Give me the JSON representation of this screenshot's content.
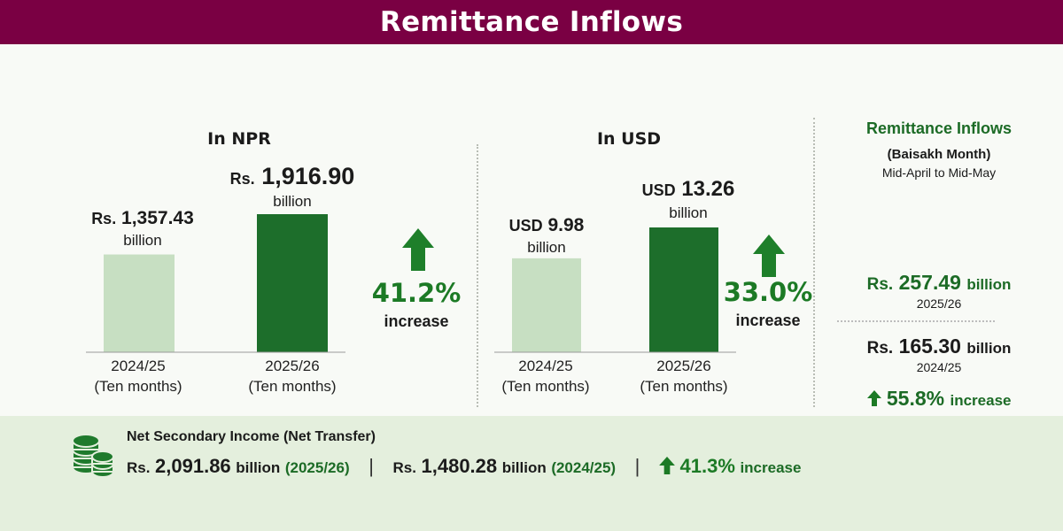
{
  "header": {
    "title": "Remittance Inflows"
  },
  "colors": {
    "header_bg": "#7a0043",
    "bar_prev": "#c7dfc2",
    "bar_curr": "#1d6e2b",
    "accent_green": "#1c7a25"
  },
  "chart_data": [
    {
      "type": "bar",
      "title": "In NPR",
      "categories": [
        "2024/25\n(Ten months)",
        "2025/26\n(Ten months)"
      ],
      "category_lines": [
        [
          "2024/25",
          "(Ten months)"
        ],
        [
          "2025/26",
          "(Ten months)"
        ]
      ],
      "values": [
        1357.43,
        1916.9
      ],
      "data_labels": [
        {
          "prefix": "Rs.",
          "amount": "1,357.43",
          "unit": "billion"
        },
        {
          "prefix": "Rs.",
          "amount": "1,916.90",
          "unit": "billion"
        }
      ],
      "change": {
        "value": "41.2%",
        "label": "increase",
        "icon": "arrow-up-icon"
      },
      "grid": false
    },
    {
      "type": "bar",
      "title": "In USD",
      "categories": [
        "2024/25\n(Ten months)",
        "2025/26\n(Ten months)"
      ],
      "category_lines": [
        [
          "2024/25",
          "(Ten months)"
        ],
        [
          "2025/26",
          "(Ten months)"
        ]
      ],
      "values": [
        9.98,
        13.26
      ],
      "data_labels": [
        {
          "prefix": "USD",
          "amount": "9.98",
          "unit": "billion"
        },
        {
          "prefix": "USD",
          "amount": "13.26",
          "unit": "billion"
        }
      ],
      "change": {
        "value": "33.0%",
        "label": "increase",
        "icon": "arrow-up-icon"
      },
      "grid": false
    }
  ],
  "side_panel": {
    "title": "Remittance Inflows",
    "subtitle": "(Baisakh Month)",
    "range": "Mid-April to Mid-May",
    "current": {
      "prefix": "Rs.",
      "amount": "257.49",
      "unit": "billion",
      "year": "2025/26"
    },
    "previous": {
      "prefix": "Rs.",
      "amount": "165.30",
      "unit": "billion",
      "year": "2024/25"
    },
    "change": {
      "value": "55.8%",
      "label": "increase"
    }
  },
  "net_secondary": {
    "title": "Net Secondary Income (Net Transfer)",
    "icon": "coins-icon",
    "current": {
      "prefix": "Rs.",
      "amount": "2,091.86",
      "unit": "billion",
      "year": "(2025/26)"
    },
    "previous": {
      "prefix": "Rs.",
      "amount": "1,480.28",
      "unit": "billion",
      "year": "(2024/25)"
    },
    "separator": "|",
    "change": {
      "value": "41.3%",
      "label": "increase"
    }
  }
}
